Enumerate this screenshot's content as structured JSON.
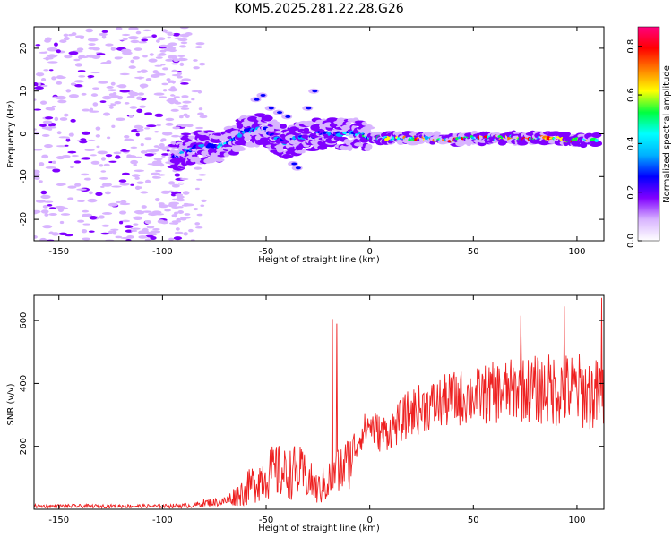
{
  "title": "KOM5.2025.281.22.28.G26",
  "chart_data": [
    {
      "type": "heatmap",
      "name": "spectrogram",
      "xlabel": "Height of straight line (km)",
      "ylabel": "Frequency (Hz)",
      "xlim": [
        -162,
        113
      ],
      "ylim": [
        -25,
        25
      ],
      "xticks": [
        -150,
        -100,
        -50,
        0,
        50,
        100
      ],
      "yticks": [
        -20,
        -10,
        0,
        10,
        20
      ],
      "colorbar": {
        "label": "Normalized spectral amplitude",
        "range": [
          0.0,
          0.88
        ],
        "ticks": [
          "0.0",
          "0.2",
          "0.4",
          "0.6",
          "0.8"
        ],
        "colormap": [
          "#ffffff",
          "#d8b4ff",
          "#8000ff",
          "#0000ff",
          "#00b0ff",
          "#00ffff",
          "#00ff40",
          "#ffff00",
          "#ff8000",
          "#ff0000",
          "#ff0080"
        ]
      },
      "ridge": {
        "x": [
          -95,
          -90,
          -85,
          -80,
          -75,
          -70,
          -65,
          -60,
          -55,
          -50,
          -45,
          -40,
          -35,
          -30,
          -25,
          -20,
          -15,
          -10,
          -5,
          0,
          10,
          20,
          30,
          40,
          50,
          60,
          70,
          80,
          90,
          100,
          110
        ],
        "y": [
          -6,
          -4,
          -3.5,
          -3,
          -3,
          -2.5,
          -1,
          0.5,
          1,
          1,
          -1,
          -2,
          -1,
          -1,
          0,
          0,
          0,
          0,
          0,
          -1,
          -1,
          -1,
          -1,
          -1.5,
          -1,
          -1,
          -1,
          -1,
          -1,
          -1.5,
          -1.5
        ],
        "amplitude": [
          0.3,
          0.35,
          0.4,
          0.4,
          0.4,
          0.4,
          0.35,
          0.4,
          0.45,
          0.4,
          0.3,
          0.3,
          0.35,
          0.3,
          0.35,
          0.4,
          0.45,
          0.45,
          0.45,
          0.5,
          0.7,
          0.75,
          0.8,
          0.8,
          0.8,
          0.8,
          0.8,
          0.8,
          0.8,
          0.8,
          0.8
        ]
      }
    },
    {
      "type": "line",
      "name": "snr",
      "xlabel": "Height of straight line (km)",
      "ylabel": "SNR (v/v)",
      "xlim": [
        -162,
        113
      ],
      "ylim": [
        0,
        680
      ],
      "xticks": [
        -150,
        -100,
        -50,
        0,
        50,
        100
      ],
      "yticks": [
        200,
        400,
        600
      ],
      "color": "#ee2020",
      "envelope": {
        "x": [
          -162,
          -100,
          -85,
          -80,
          -70,
          -60,
          -55,
          -50,
          -45,
          -40,
          -35,
          -30,
          -25,
          -20,
          -15,
          -10,
          -5,
          0,
          5,
          10,
          20,
          30,
          40,
          50,
          60,
          70,
          80,
          90,
          100,
          110,
          113
        ],
        "center": [
          10,
          10,
          12,
          20,
          25,
          60,
          90,
          110,
          120,
          110,
          120,
          100,
          60,
          90,
          120,
          150,
          230,
          270,
          240,
          250,
          310,
          330,
          350,
          360,
          370,
          380,
          380,
          380,
          380,
          360,
          360
        ],
        "spread": [
          6,
          6,
          8,
          12,
          15,
          50,
          70,
          80,
          90,
          80,
          90,
          70,
          50,
          70,
          80,
          90,
          50,
          60,
          60,
          60,
          80,
          80,
          90,
          90,
          100,
          100,
          110,
          120,
          120,
          120,
          120
        ]
      },
      "spikes": [
        {
          "x": -18,
          "y": 605
        },
        {
          "x": -16,
          "y": 590
        },
        {
          "x": 73,
          "y": 615
        },
        {
          "x": 94,
          "y": 645
        },
        {
          "x": 112,
          "y": 672
        }
      ]
    }
  ]
}
